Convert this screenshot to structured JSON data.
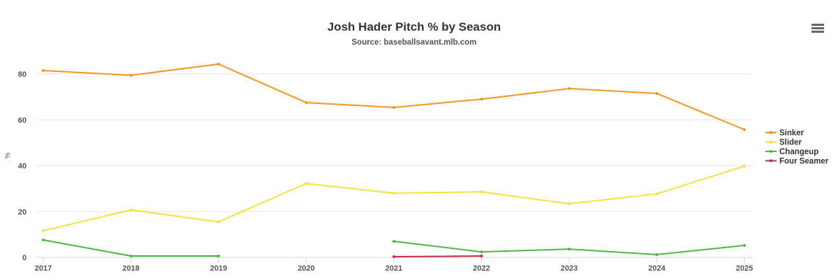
{
  "chart_data": {
    "type": "line",
    "title": "Josh Hader Pitch % by Season",
    "subtitle": "Source: baseballsavant.mlb.com",
    "xlabel": "",
    "ylabel": "%",
    "ylim": [
      0,
      80
    ],
    "yticks": [
      0,
      20,
      40,
      60,
      80
    ],
    "categories": [
      "2017",
      "2018",
      "2019",
      "2020",
      "2021",
      "2022",
      "2023",
      "2024",
      "2025"
    ],
    "grid": true,
    "legend": "right",
    "series": [
      {
        "name": "Sinker",
        "color": "#f7941d",
        "values": [
          81.5,
          79.4,
          84.3,
          67.5,
          65.4,
          69.0,
          73.6,
          71.5,
          55.7
        ]
      },
      {
        "name": "Slider",
        "color": "#f2e33a",
        "values": [
          11.6,
          20.7,
          15.5,
          32.2,
          28.0,
          28.6,
          23.4,
          27.7,
          39.8
        ]
      },
      {
        "name": "Changeup",
        "color": "#4cb640",
        "values": [
          7.6,
          0.6,
          0.6,
          null,
          7.0,
          2.4,
          3.6,
          1.2,
          5.2
        ]
      },
      {
        "name": "Four Seamer",
        "color": "#d0283c",
        "values": [
          null,
          null,
          null,
          null,
          0.3,
          0.6,
          null,
          null,
          null
        ]
      }
    ]
  },
  "menu_icon": "hamburger-menu-icon"
}
